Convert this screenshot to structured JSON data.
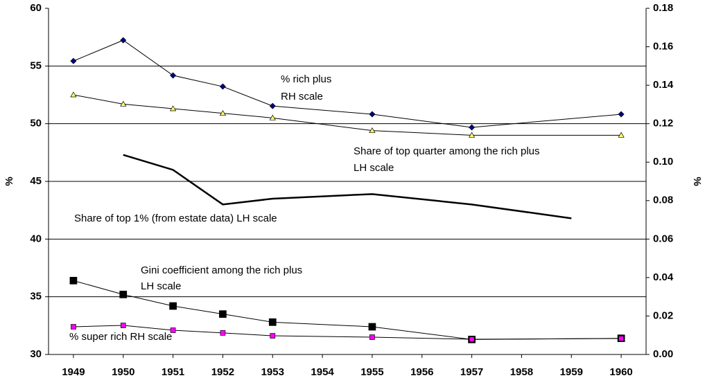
{
  "chart_data": {
    "type": "line",
    "ylabel": "%",
    "y2label": "%",
    "xlim": [
      1948.5,
      1960.5
    ],
    "xticks": [
      1949,
      1950,
      1951,
      1952,
      1953,
      1954,
      1955,
      1956,
      1957,
      1958,
      1959,
      1960
    ],
    "ylim": [
      30,
      60
    ],
    "yticks": [
      30,
      35,
      40,
      45,
      50,
      55,
      60
    ],
    "y2lim": [
      0,
      0.18
    ],
    "y2ticks": [
      {
        "value": 0,
        "label": "0.00"
      },
      0.02,
      0.04,
      0.06,
      0.08,
      {
        "value": 0.1,
        "label": "0.10"
      },
      0.12,
      0.14,
      0.16,
      0.18
    ],
    "grid": true,
    "annotations": [
      "% rich plus",
      "RH scale",
      "Share of top quarter among the rich plus",
      "LH scale",
      "Share of top 1% (from estate data) LH scale",
      "Gini coefficient among the rich plus",
      "LH scale",
      "% super rich   RH scale"
    ],
    "series": [
      {
        "color": "#00008b",
        "marker": "diamond",
        "axis": "y2",
        "x": [
          1949,
          1950,
          1951,
          1952,
          1953,
          1955,
          1957,
          1960
        ],
        "values": [
          0.1526,
          0.1634,
          0.1451,
          0.1393,
          0.1292,
          0.1249,
          0.1181,
          0.1249
        ]
      },
      {
        "color": "#ffff66",
        "marker": "triangle",
        "x": [
          1949,
          1950,
          1951,
          1952,
          1953,
          1955,
          1957,
          1960
        ],
        "values": [
          52.5,
          51.7,
          51.3,
          50.9,
          50.5,
          49.4,
          49.0,
          49.0
        ]
      },
      {
        "color": "#000000",
        "marker": "none",
        "x": [
          1950,
          1951,
          1952,
          1953,
          1955,
          1957,
          1959
        ],
        "values": [
          47.3,
          46.0,
          43.0,
          43.5,
          43.9,
          43.0,
          41.8
        ]
      },
      {
        "color": "#000000",
        "marker": "square",
        "x": [
          1949,
          1950,
          1951,
          1952,
          1953,
          1955,
          1957,
          1960
        ],
        "values": [
          36.4,
          35.2,
          34.2,
          33.5,
          32.8,
          32.4,
          31.3,
          31.4
        ]
      },
      {
        "color": "#ff00ff",
        "marker": "smallsquare",
        "axis": "y2",
        "x": [
          1949,
          1950,
          1951,
          1952,
          1953,
          1955,
          1957,
          1960
        ],
        "values": [
          0.0144,
          0.0151,
          0.0126,
          0.0112,
          0.0097,
          0.009,
          0.0079,
          0.0083
        ]
      }
    ]
  }
}
